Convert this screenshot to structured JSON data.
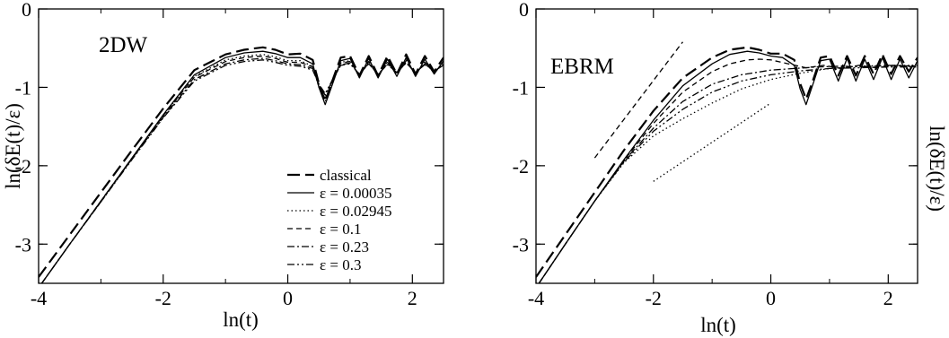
{
  "chart_data": [
    {
      "type": "line",
      "title": "",
      "panel_label": "2DW",
      "xlabel": "ln(t)",
      "ylabel": "ln(δE(t)/ε)",
      "ylabel_side": "left",
      "xlim": [
        -4,
        2.5
      ],
      "ylim": [
        -3.5,
        0
      ],
      "xticks": [
        -4,
        -2,
        0,
        2
      ],
      "yticks": [
        0,
        -1,
        -2,
        -3
      ],
      "grid": false,
      "legend_position": "center-right",
      "series": [
        {
          "name": "classical",
          "style": "long-dash",
          "x": [
            -4,
            -3.5,
            -3,
            -2.5,
            -2,
            -1.5,
            -1,
            -0.7,
            -0.4,
            -0.2,
            0,
            0.2,
            0.4,
            0.5,
            0.6,
            0.7,
            0.85,
            1.0,
            1.15,
            1.3,
            1.45,
            1.6,
            1.75,
            1.9,
            2.05,
            2.2,
            2.35,
            2.5
          ],
          "y": [
            -3.42,
            -2.88,
            -2.34,
            -1.8,
            -1.27,
            -0.78,
            -0.58,
            -0.52,
            -0.49,
            -0.52,
            -0.58,
            -0.57,
            -0.65,
            -0.95,
            -1.18,
            -0.95,
            -0.62,
            -0.6,
            -0.85,
            -0.6,
            -0.85,
            -0.6,
            -0.83,
            -0.58,
            -0.83,
            -0.6,
            -0.8,
            -0.62
          ]
        },
        {
          "name": "ε = 0.00035",
          "style": "solid",
          "x": [
            -3.95,
            -3.5,
            -3,
            -2.5,
            -2,
            -1.5,
            -1,
            -0.7,
            -0.4,
            -0.2,
            0,
            0.2,
            0.4,
            0.5,
            0.6,
            0.7,
            0.85,
            1.0,
            1.15,
            1.3,
            1.45,
            1.6,
            1.75,
            1.9,
            2.05,
            2.2,
            2.35,
            2.5
          ],
          "y": [
            -3.5,
            -3.0,
            -2.45,
            -1.9,
            -1.35,
            -0.84,
            -0.62,
            -0.56,
            -0.54,
            -0.57,
            -0.62,
            -0.62,
            -0.7,
            -1.0,
            -1.22,
            -1.0,
            -0.66,
            -0.63,
            -0.88,
            -0.63,
            -0.88,
            -0.64,
            -0.86,
            -0.62,
            -0.86,
            -0.64,
            -0.83,
            -0.66
          ]
        },
        {
          "name": "ε = 0.02945",
          "style": "dotted",
          "x": [
            -3.95,
            -3.5,
            -3,
            -2.5,
            -2,
            -1.5,
            -1,
            -0.7,
            -0.4,
            -0.2,
            0,
            0.2,
            0.4,
            0.5,
            0.6,
            0.7,
            0.85,
            1.0,
            1.15,
            1.3,
            1.45,
            1.6,
            1.75,
            1.9,
            2.05,
            2.2,
            2.35,
            2.5
          ],
          "y": [
            -3.5,
            -3.0,
            -2.45,
            -1.9,
            -1.36,
            -0.86,
            -0.65,
            -0.6,
            -0.58,
            -0.61,
            -0.66,
            -0.66,
            -0.73,
            -1.0,
            -1.18,
            -0.98,
            -0.68,
            -0.66,
            -0.86,
            -0.66,
            -0.86,
            -0.67,
            -0.84,
            -0.65,
            -0.84,
            -0.67,
            -0.82,
            -0.68
          ]
        },
        {
          "name": "ε = 0.1",
          "style": "dashed",
          "x": [
            -3.95,
            -3.5,
            -3,
            -2.5,
            -2,
            -1.5,
            -1,
            -0.7,
            -0.4,
            -0.2,
            0,
            0.2,
            0.4,
            0.5,
            0.6,
            0.7,
            0.85,
            1.0,
            1.15,
            1.3,
            1.45,
            1.6,
            1.75,
            1.9,
            2.05,
            2.2,
            2.35,
            2.5
          ],
          "y": [
            -3.5,
            -3.0,
            -2.45,
            -1.9,
            -1.36,
            -0.87,
            -0.67,
            -0.62,
            -0.6,
            -0.63,
            -0.68,
            -0.68,
            -0.74,
            -0.98,
            -1.14,
            -0.96,
            -0.69,
            -0.67,
            -0.85,
            -0.67,
            -0.85,
            -0.68,
            -0.83,
            -0.66,
            -0.83,
            -0.68,
            -0.81,
            -0.69
          ]
        },
        {
          "name": "ε = 0.23",
          "style": "dash-dot",
          "x": [
            -3.95,
            -3.5,
            -3,
            -2.5,
            -2,
            -1.5,
            -1,
            -0.7,
            -0.4,
            -0.2,
            0,
            0.2,
            0.4,
            0.5,
            0.6,
            0.7,
            0.85,
            1.0,
            1.15,
            1.3,
            1.45,
            1.6,
            1.75,
            1.9,
            2.05,
            2.2,
            2.35,
            2.5
          ],
          "y": [
            -3.5,
            -3.0,
            -2.46,
            -1.91,
            -1.38,
            -0.9,
            -0.7,
            -0.65,
            -0.63,
            -0.66,
            -0.7,
            -0.71,
            -0.76,
            -0.97,
            -1.1,
            -0.94,
            -0.71,
            -0.69,
            -0.84,
            -0.69,
            -0.84,
            -0.7,
            -0.82,
            -0.68,
            -0.82,
            -0.7,
            -0.8,
            -0.71
          ]
        },
        {
          "name": "ε = 0.3",
          "style": "dash-dot-dot",
          "x": [
            -3.95,
            -3.5,
            -3,
            -2.5,
            -2,
            -1.5,
            -1,
            -0.7,
            -0.4,
            -0.2,
            0,
            0.2,
            0.4,
            0.5,
            0.6,
            0.7,
            0.85,
            1.0,
            1.15,
            1.3,
            1.45,
            1.6,
            1.75,
            1.9,
            2.05,
            2.2,
            2.35,
            2.5
          ],
          "y": [
            -3.5,
            -3.0,
            -2.46,
            -1.92,
            -1.39,
            -0.92,
            -0.72,
            -0.67,
            -0.65,
            -0.68,
            -0.72,
            -0.73,
            -0.78,
            -0.96,
            -1.08,
            -0.93,
            -0.72,
            -0.7,
            -0.83,
            -0.7,
            -0.83,
            -0.71,
            -0.81,
            -0.69,
            -0.81,
            -0.71,
            -0.79,
            -0.72
          ]
        }
      ]
    },
    {
      "type": "line",
      "title": "",
      "panel_label": "EBRM",
      "xlabel": "ln(t)",
      "ylabel": "ln(δE(t)/ε)",
      "ylabel_side": "right",
      "xlim": [
        -4,
        2.5
      ],
      "ylim": [
        -3.5,
        0
      ],
      "xticks": [
        -4,
        -2,
        0,
        2
      ],
      "yticks": [
        0,
        -1,
        -2,
        -3
      ],
      "grid": false,
      "legend_position": "none",
      "reference_lines": [
        {
          "style": "dashed",
          "x": [
            -3,
            -1.5
          ],
          "y": [
            -1.9,
            -0.42
          ]
        },
        {
          "style": "dotted",
          "x": [
            -2,
            0
          ],
          "y": [
            -2.2,
            -1.2
          ]
        }
      ],
      "series": [
        {
          "name": "classical",
          "style": "long-dash",
          "x": [
            -4,
            -3.5,
            -3,
            -2.5,
            -2,
            -1.5,
            -1,
            -0.7,
            -0.4,
            -0.2,
            0,
            0.2,
            0.4,
            0.5,
            0.6,
            0.7,
            0.85,
            1.0,
            1.15,
            1.3,
            1.45,
            1.6,
            1.75,
            1.9,
            2.05,
            2.2,
            2.35,
            2.5
          ],
          "y": [
            -3.42,
            -2.88,
            -2.34,
            -1.8,
            -1.3,
            -0.88,
            -0.62,
            -0.52,
            -0.49,
            -0.52,
            -0.57,
            -0.57,
            -0.65,
            -0.95,
            -1.15,
            -0.95,
            -0.62,
            -0.6,
            -0.85,
            -0.6,
            -0.85,
            -0.6,
            -0.83,
            -0.58,
            -0.83,
            -0.6,
            -0.8,
            -0.62
          ]
        },
        {
          "name": "ε = 0.00035",
          "style": "solid",
          "x": [
            -3.95,
            -3.5,
            -3,
            -2.5,
            -2,
            -1.5,
            -1,
            -0.7,
            -0.4,
            -0.2,
            0,
            0.2,
            0.4,
            0.5,
            0.6,
            0.7,
            0.85,
            1.0,
            1.15,
            1.3,
            1.45,
            1.6,
            1.75,
            1.9,
            2.05,
            2.2,
            2.35,
            2.5
          ],
          "y": [
            -3.5,
            -3.0,
            -2.45,
            -1.92,
            -1.42,
            -0.98,
            -0.7,
            -0.58,
            -0.54,
            -0.56,
            -0.6,
            -0.62,
            -0.72,
            -1.02,
            -1.22,
            -1.0,
            -0.66,
            -0.64,
            -0.92,
            -0.63,
            -0.92,
            -0.64,
            -0.9,
            -0.62,
            -0.9,
            -0.64,
            -0.88,
            -0.66
          ]
        },
        {
          "name": "ε = 0.02945",
          "style": "dotted",
          "x": [
            -3.95,
            -3.5,
            -3,
            -2.5,
            -2,
            -1.5,
            -1,
            -0.5,
            0,
            0.5,
            1.0,
            1.5,
            2.0,
            2.5
          ],
          "y": [
            -3.5,
            -3.0,
            -2.45,
            -1.96,
            -1.62,
            -1.4,
            -1.2,
            -1.02,
            -0.9,
            -0.82,
            -0.76,
            -0.73,
            -0.72,
            -0.72
          ]
        },
        {
          "name": "ε = 0.1",
          "style": "dashed",
          "x": [
            -3.95,
            -3.5,
            -3,
            -2.5,
            -2,
            -1.5,
            -1,
            -0.7,
            -0.4,
            -0.2,
            0,
            0.3,
            0.6,
            0.9,
            1.2,
            1.5,
            1.8,
            2.1,
            2.5
          ],
          "y": [
            -3.5,
            -3.0,
            -2.45,
            -1.93,
            -1.46,
            -1.06,
            -0.8,
            -0.7,
            -0.65,
            -0.64,
            -0.65,
            -0.7,
            -0.75,
            -0.72,
            -0.76,
            -0.72,
            -0.75,
            -0.72,
            -0.74
          ]
        },
        {
          "name": "ε = 0.23",
          "style": "dash-dot",
          "x": [
            -3.95,
            -3.5,
            -3,
            -2.5,
            -2,
            -1.5,
            -1,
            -0.5,
            0,
            0.4,
            0.8,
            1.2,
            1.6,
            2.0,
            2.5
          ],
          "y": [
            -3.5,
            -3.0,
            -2.45,
            -1.94,
            -1.52,
            -1.18,
            -0.96,
            -0.84,
            -0.78,
            -0.76,
            -0.74,
            -0.73,
            -0.74,
            -0.72,
            -0.73
          ]
        },
        {
          "name": "ε = 0.3",
          "style": "dash-dot-dot",
          "x": [
            -3.95,
            -3.5,
            -3,
            -2.5,
            -2,
            -1.5,
            -1,
            -0.5,
            0,
            0.5,
            1.0,
            1.5,
            2.0,
            2.5
          ],
          "y": [
            -3.5,
            -3.0,
            -2.45,
            -1.95,
            -1.56,
            -1.28,
            -1.06,
            -0.92,
            -0.84,
            -0.79,
            -0.76,
            -0.75,
            -0.74,
            -0.74
          ]
        }
      ]
    }
  ]
}
